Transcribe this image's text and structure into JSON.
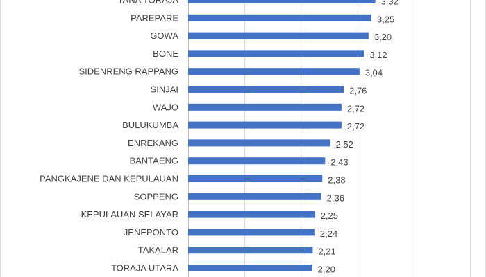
{
  "chart_data": {
    "type": "bar",
    "orientation": "horizontal",
    "categories": [
      "TANA TORAJA",
      "PAREPARE",
      "GOWA",
      "BONE",
      "SIDENRENG RAPPANG",
      "SINJAI",
      "WAJO",
      "BULUKUMBA",
      "ENREKANG",
      "BANTAENG",
      "PANGKAJENE DAN KEPULAUAN",
      "SOPPENG",
      "KEPULAUAN SELAYAR",
      "JENEPONTO",
      "TAKALAR",
      "TORAJA UTARA"
    ],
    "values": [
      3.32,
      3.25,
      3.2,
      3.12,
      3.04,
      2.76,
      2.72,
      2.72,
      2.52,
      2.43,
      2.38,
      2.36,
      2.25,
      2.24,
      2.21,
      2.2
    ],
    "value_labels": [
      "3,32",
      "3,25",
      "3,20",
      "3,12",
      "3,04",
      "2,76",
      "2,72",
      "2,72",
      "2,52",
      "2,43",
      "2,38",
      "2,36",
      "2,25",
      "2,24",
      "2,21",
      "2,20"
    ],
    "xlim": [
      0,
      5
    ],
    "x_gridlines": [
      0,
      1,
      2,
      3,
      4,
      5
    ],
    "grid": true,
    "bar_color": "#4472c4",
    "title": "",
    "xlabel": "",
    "ylabel": ""
  }
}
